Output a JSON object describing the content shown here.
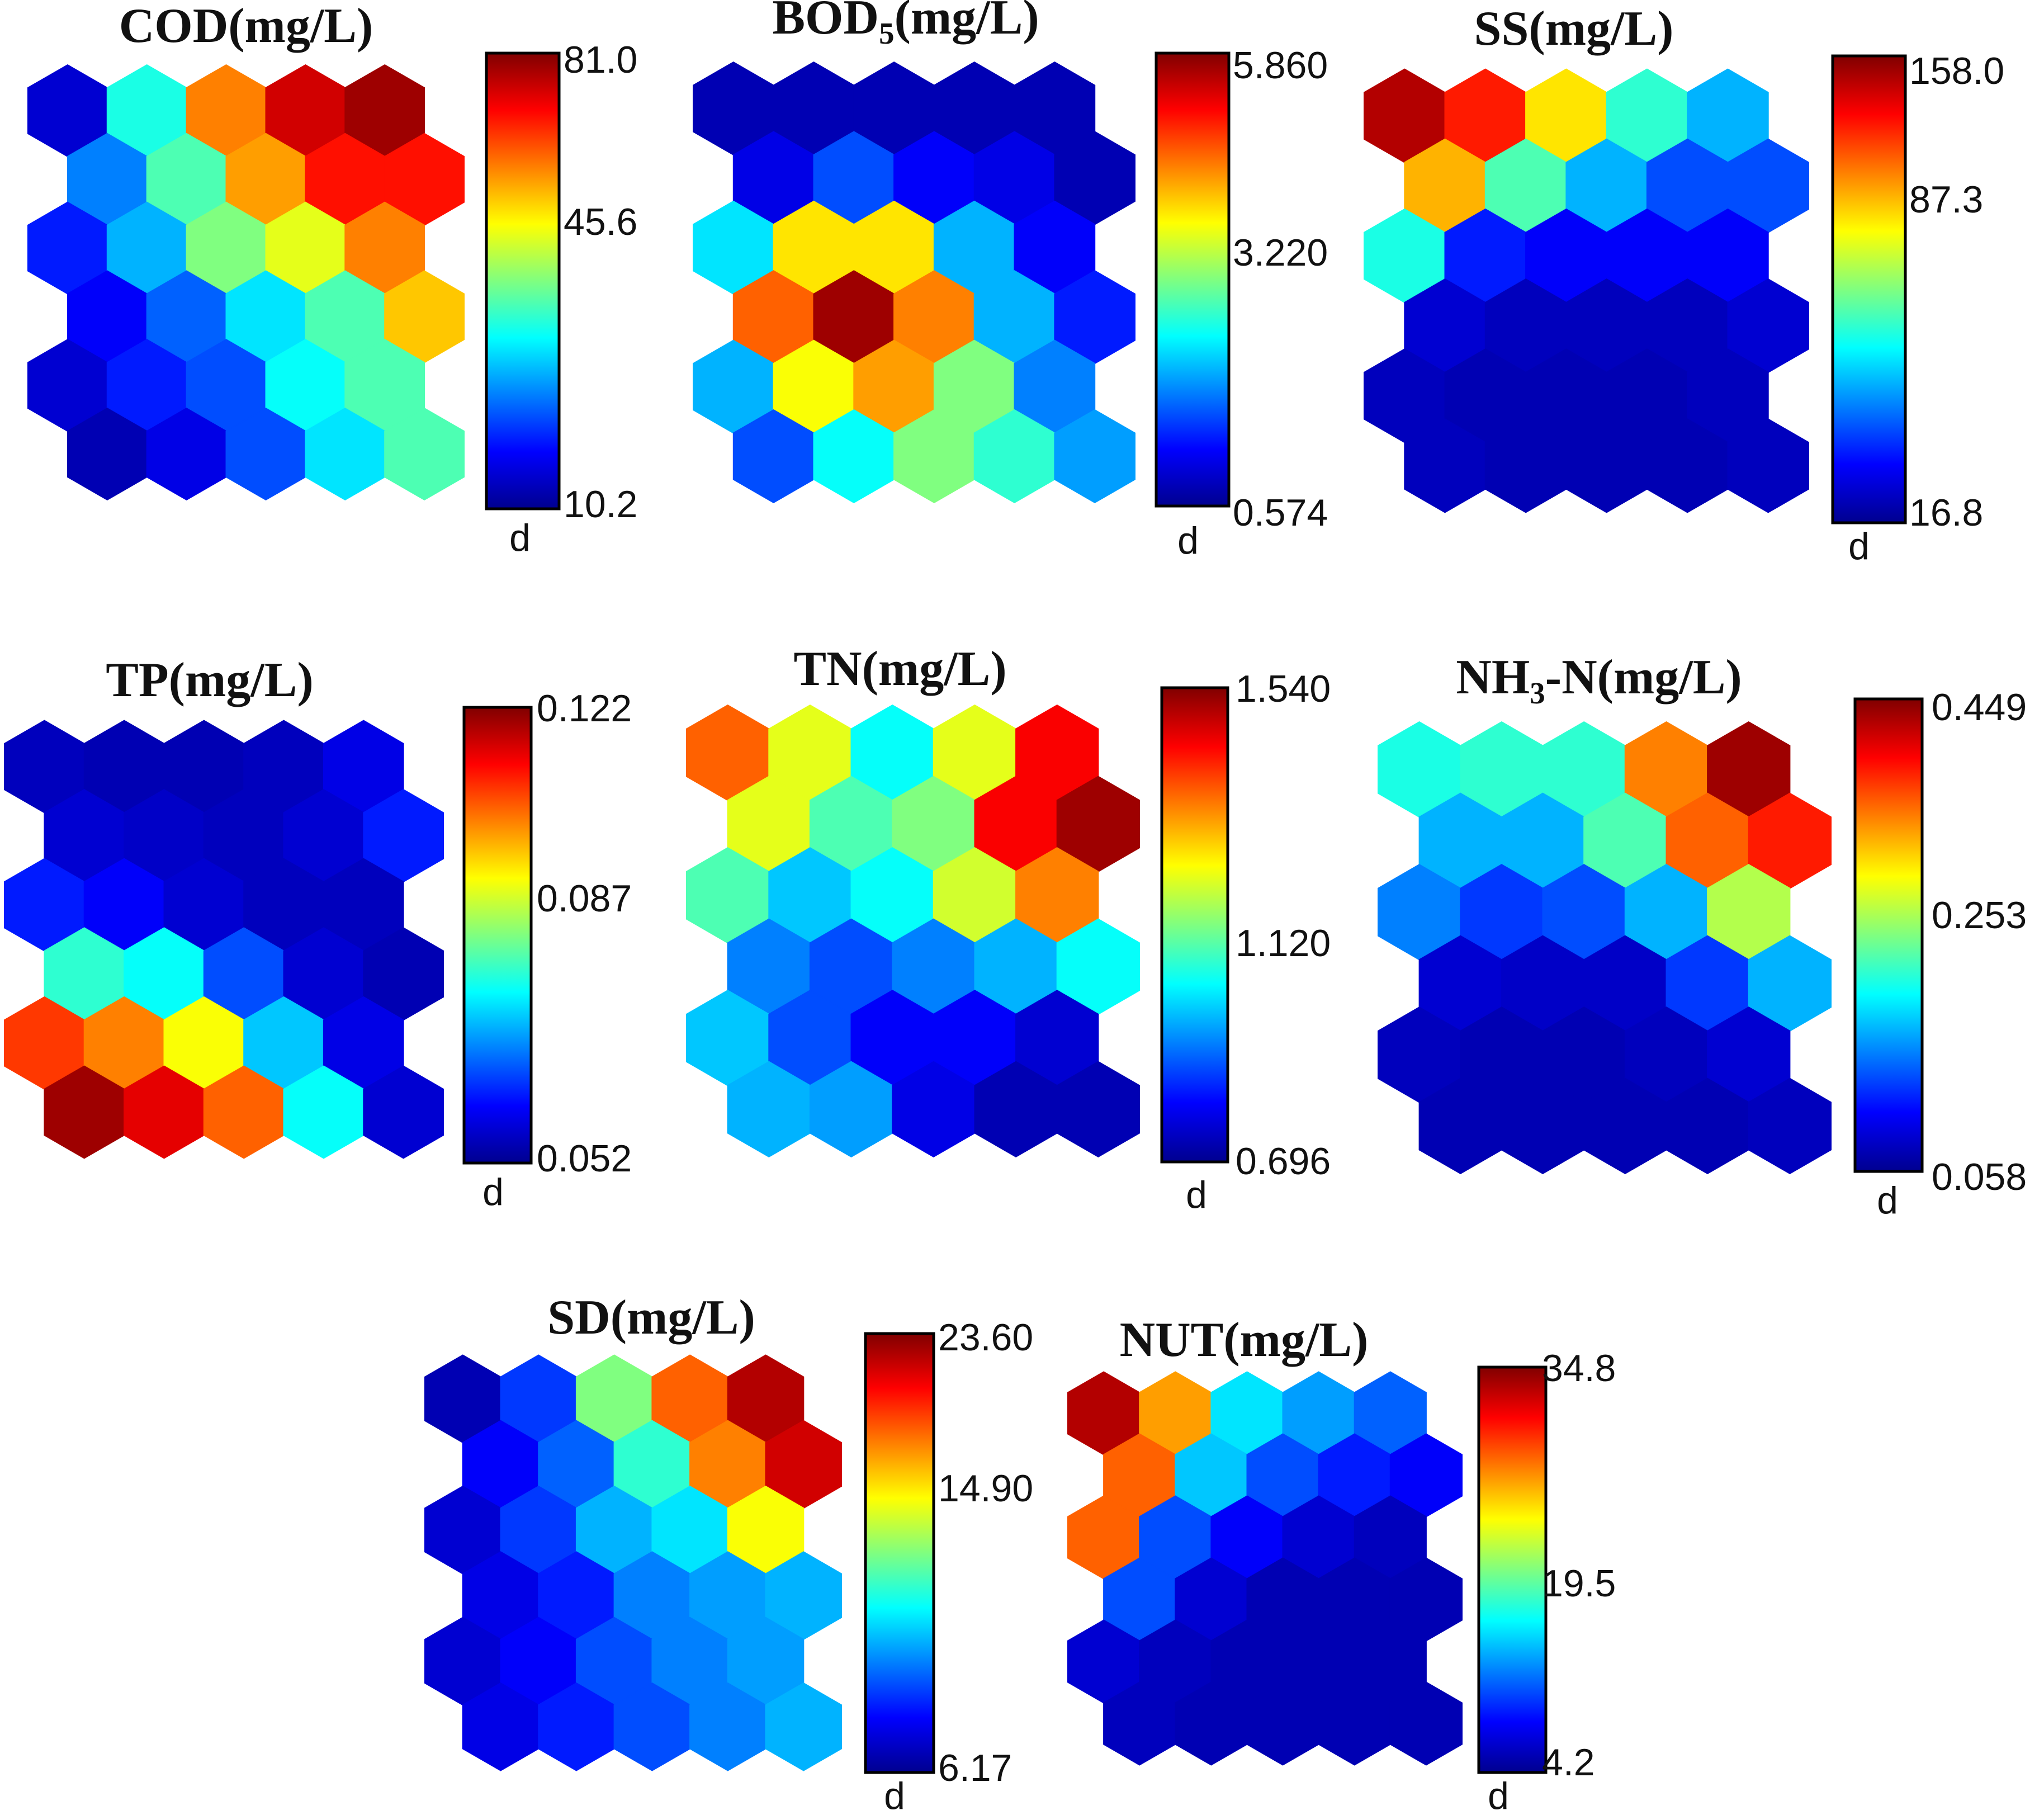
{
  "chart_data": [
    {
      "type": "heatmap",
      "title": "COD(mg/L)",
      "colorbar_ticks": [
        "81.0",
        "45.6",
        "10.2"
      ],
      "colorbar_label": "d",
      "range": [
        10.2,
        81.0
      ],
      "grid_rows": 6,
      "grid_cols": 5,
      "cells": [
        [
          0.08,
          0.4,
          0.75,
          0.92,
          0.97
        ],
        [
          0.25,
          0.45,
          0.72,
          0.86,
          0.86
        ],
        [
          0.15,
          0.3,
          0.5,
          0.6,
          0.75
        ],
        [
          0.12,
          0.22,
          0.35,
          0.45,
          0.68
        ],
        [
          0.08,
          0.15,
          0.2,
          0.38,
          0.45
        ],
        [
          0.05,
          0.1,
          0.2,
          0.35,
          0.45
        ]
      ]
    },
    {
      "type": "heatmap",
      "title": "BOD",
      "title_sub": "5",
      "title_rest": "(mg/L)",
      "colorbar_ticks": [
        "5.860",
        "3.220",
        "0.574"
      ],
      "colorbar_label": "d",
      "range": [
        0.574,
        5.86
      ],
      "grid_rows": 6,
      "grid_cols": 5,
      "cells": [
        [
          0.05,
          0.05,
          0.05,
          0.05,
          0.05
        ],
        [
          0.1,
          0.2,
          0.12,
          0.1,
          0.05
        ],
        [
          0.35,
          0.65,
          0.65,
          0.3,
          0.12
        ],
        [
          0.78,
          0.97,
          0.75,
          0.3,
          0.15
        ],
        [
          0.3,
          0.62,
          0.72,
          0.5,
          0.25
        ],
        [
          0.2,
          0.38,
          0.5,
          0.42,
          0.28
        ]
      ]
    },
    {
      "type": "heatmap",
      "title": "SS(mg/L)",
      "colorbar_ticks": [
        "158.0",
        "87.3",
        "16.8"
      ],
      "colorbar_label": "d",
      "range": [
        16.8,
        158.0
      ],
      "grid_rows": 6,
      "grid_cols": 5,
      "cells": [
        [
          0.95,
          0.85,
          0.65,
          0.42,
          0.3
        ],
        [
          0.7,
          0.45,
          0.3,
          0.2,
          0.2
        ],
        [
          0.4,
          0.15,
          0.12,
          0.12,
          0.12
        ],
        [
          0.08,
          0.06,
          0.06,
          0.06,
          0.08
        ],
        [
          0.06,
          0.05,
          0.05,
          0.05,
          0.06
        ],
        [
          0.06,
          0.05,
          0.05,
          0.05,
          0.06
        ]
      ]
    },
    {
      "type": "heatmap",
      "title": "TP(mg/L)",
      "colorbar_ticks": [
        "0.122",
        "0.087",
        "0.052"
      ],
      "colorbar_label": "d",
      "range": [
        0.052,
        0.122
      ],
      "grid_rows": 6,
      "grid_cols": 5,
      "cells": [
        [
          0.06,
          0.05,
          0.05,
          0.06,
          0.1
        ],
        [
          0.08,
          0.07,
          0.06,
          0.08,
          0.15
        ],
        [
          0.15,
          0.12,
          0.08,
          0.06,
          0.06
        ],
        [
          0.42,
          0.38,
          0.2,
          0.08,
          0.05
        ],
        [
          0.82,
          0.75,
          0.62,
          0.32,
          0.1
        ],
        [
          0.97,
          0.9,
          0.78,
          0.38,
          0.08
        ]
      ]
    },
    {
      "type": "heatmap",
      "title": "TN(mg/L)",
      "colorbar_ticks": [
        "1.540",
        "1.120",
        "0.696"
      ],
      "colorbar_label": "d",
      "range": [
        0.696,
        1.54
      ],
      "grid_rows": 6,
      "grid_cols": 5,
      "cells": [
        [
          0.78,
          0.6,
          0.38,
          0.6,
          0.88
        ],
        [
          0.6,
          0.45,
          0.5,
          0.88,
          0.97
        ],
        [
          0.45,
          0.32,
          0.38,
          0.58,
          0.75
        ],
        [
          0.25,
          0.2,
          0.25,
          0.3,
          0.38
        ],
        [
          0.32,
          0.2,
          0.12,
          0.12,
          0.08
        ],
        [
          0.3,
          0.28,
          0.1,
          0.05,
          0.05
        ]
      ]
    },
    {
      "type": "heatmap",
      "title": "NH",
      "title_sub": "3",
      "title_rest": "-N(mg/L)",
      "colorbar_ticks": [
        "0.449",
        "0.253",
        "0.058"
      ],
      "colorbar_label": "d",
      "range": [
        0.058,
        0.449
      ],
      "grid_rows": 6,
      "grid_cols": 5,
      "cells": [
        [
          0.4,
          0.42,
          0.42,
          0.75,
          0.97
        ],
        [
          0.3,
          0.3,
          0.45,
          0.78,
          0.85
        ],
        [
          0.25,
          0.18,
          0.2,
          0.3,
          0.55
        ],
        [
          0.08,
          0.07,
          0.07,
          0.18,
          0.3
        ],
        [
          0.06,
          0.05,
          0.05,
          0.06,
          0.08
        ],
        [
          0.05,
          0.05,
          0.05,
          0.05,
          0.06
        ]
      ]
    },
    {
      "type": "heatmap",
      "title": "SD(mg/L)",
      "colorbar_ticks": [
        "23.60",
        "14.90",
        "6.17"
      ],
      "colorbar_label": "d",
      "range": [
        6.17,
        23.6
      ],
      "grid_rows": 6,
      "grid_cols": 5,
      "cells": [
        [
          0.05,
          0.18,
          0.5,
          0.78,
          0.95
        ],
        [
          0.12,
          0.22,
          0.42,
          0.75,
          0.92
        ],
        [
          0.08,
          0.18,
          0.3,
          0.35,
          0.62
        ],
        [
          0.1,
          0.15,
          0.25,
          0.28,
          0.3
        ],
        [
          0.08,
          0.12,
          0.2,
          0.25,
          0.28
        ],
        [
          0.1,
          0.15,
          0.2,
          0.25,
          0.3
        ]
      ]
    },
    {
      "type": "heatmap",
      "title": "NUT(mg/L)",
      "colorbar_ticks": [
        "34.8",
        "19.5",
        "4.2"
      ],
      "colorbar_label": "d",
      "range": [
        4.2,
        34.8
      ],
      "grid_rows": 6,
      "grid_cols": 5,
      "cells": [
        [
          0.95,
          0.72,
          0.35,
          0.28,
          0.22
        ],
        [
          0.78,
          0.32,
          0.2,
          0.15,
          0.12
        ],
        [
          0.78,
          0.2,
          0.12,
          0.08,
          0.06
        ],
        [
          0.2,
          0.08,
          0.05,
          0.05,
          0.05
        ],
        [
          0.08,
          0.06,
          0.05,
          0.05,
          0.05
        ],
        [
          0.06,
          0.05,
          0.05,
          0.05,
          0.05
        ]
      ]
    }
  ]
}
